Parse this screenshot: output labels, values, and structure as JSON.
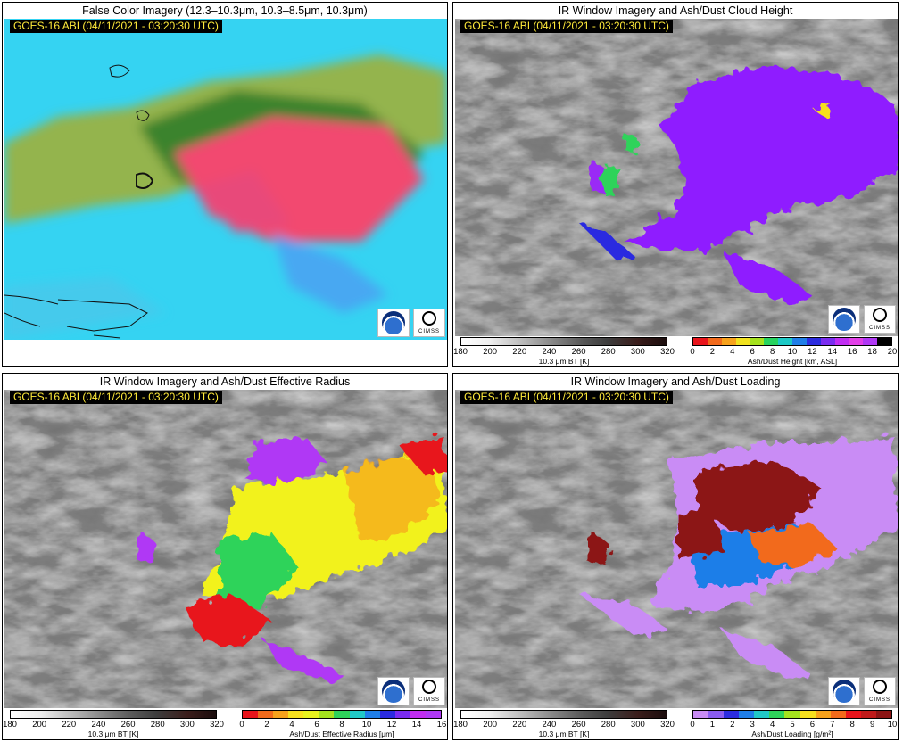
{
  "timestamp": "GOES-16 ABI (04/11/2021 - 03:20:30 UTC)",
  "panels": {
    "false_color": {
      "title": "False Color Imagery (12.3–10.3μm, 10.3–8.5μm, 10.3μm)"
    },
    "height": {
      "title": "IR Window Imagery and Ash/Dust Cloud Height"
    },
    "radius": {
      "title": "IR Window Imagery and Ash/Dust Effective Radius"
    },
    "loading": {
      "title": "IR Window Imagery and Ash/Dust Loading"
    }
  },
  "logos": {
    "noaa": "noaa-icon",
    "cimss": "cimss-icon",
    "cimss_text": "CIMSS"
  },
  "colorbars": {
    "bt": {
      "label": "10.3 μm BT [K]",
      "ticks": [
        "180",
        "200",
        "220",
        "240",
        "260",
        "280",
        "300",
        "320"
      ]
    },
    "height": {
      "label": "Ash/Dust Height [km, ASL]",
      "ticks": [
        "0",
        "2",
        "4",
        "6",
        "8",
        "10",
        "12",
        "14",
        "16",
        "18",
        "20"
      ],
      "colors": [
        "#e8141b",
        "#f26a1b",
        "#f7a21c",
        "#f1e21f",
        "#a5e21e",
        "#27d35f",
        "#1cc9c6",
        "#1f7ee8",
        "#2c2ce0",
        "#7a2cf0",
        "#c12df2",
        "#e23fe8",
        "#b038f5",
        "#000000"
      ]
    },
    "radius": {
      "label": "Ash/Dust Effective Radius [μm]",
      "ticks": [
        "0",
        "2",
        "4",
        "6",
        "8",
        "10",
        "12",
        "14",
        "16"
      ],
      "colors": [
        "#e8141b",
        "#f26a1b",
        "#f7a21c",
        "#f7e01e",
        "#e8f21e",
        "#a5e21e",
        "#2fd35a",
        "#21c9c6",
        "#1f7ee8",
        "#2c2ce0",
        "#7a2cf0",
        "#c12df2",
        "#b038f5"
      ]
    },
    "loading": {
      "label": "Ash/Dust Loading [g/m²]",
      "ticks": [
        "0",
        "1",
        "2",
        "3",
        "4",
        "5",
        "6",
        "7",
        "8",
        "9",
        "10"
      ],
      "colors": [
        "#c98cf5",
        "#8a5cf0",
        "#2c2ce0",
        "#1f7ee8",
        "#21c9c6",
        "#2fd35a",
        "#a5e21e",
        "#f7e01e",
        "#f7a21c",
        "#f26a1b",
        "#e8141b",
        "#c01a1a",
        "#8c1414"
      ]
    }
  }
}
